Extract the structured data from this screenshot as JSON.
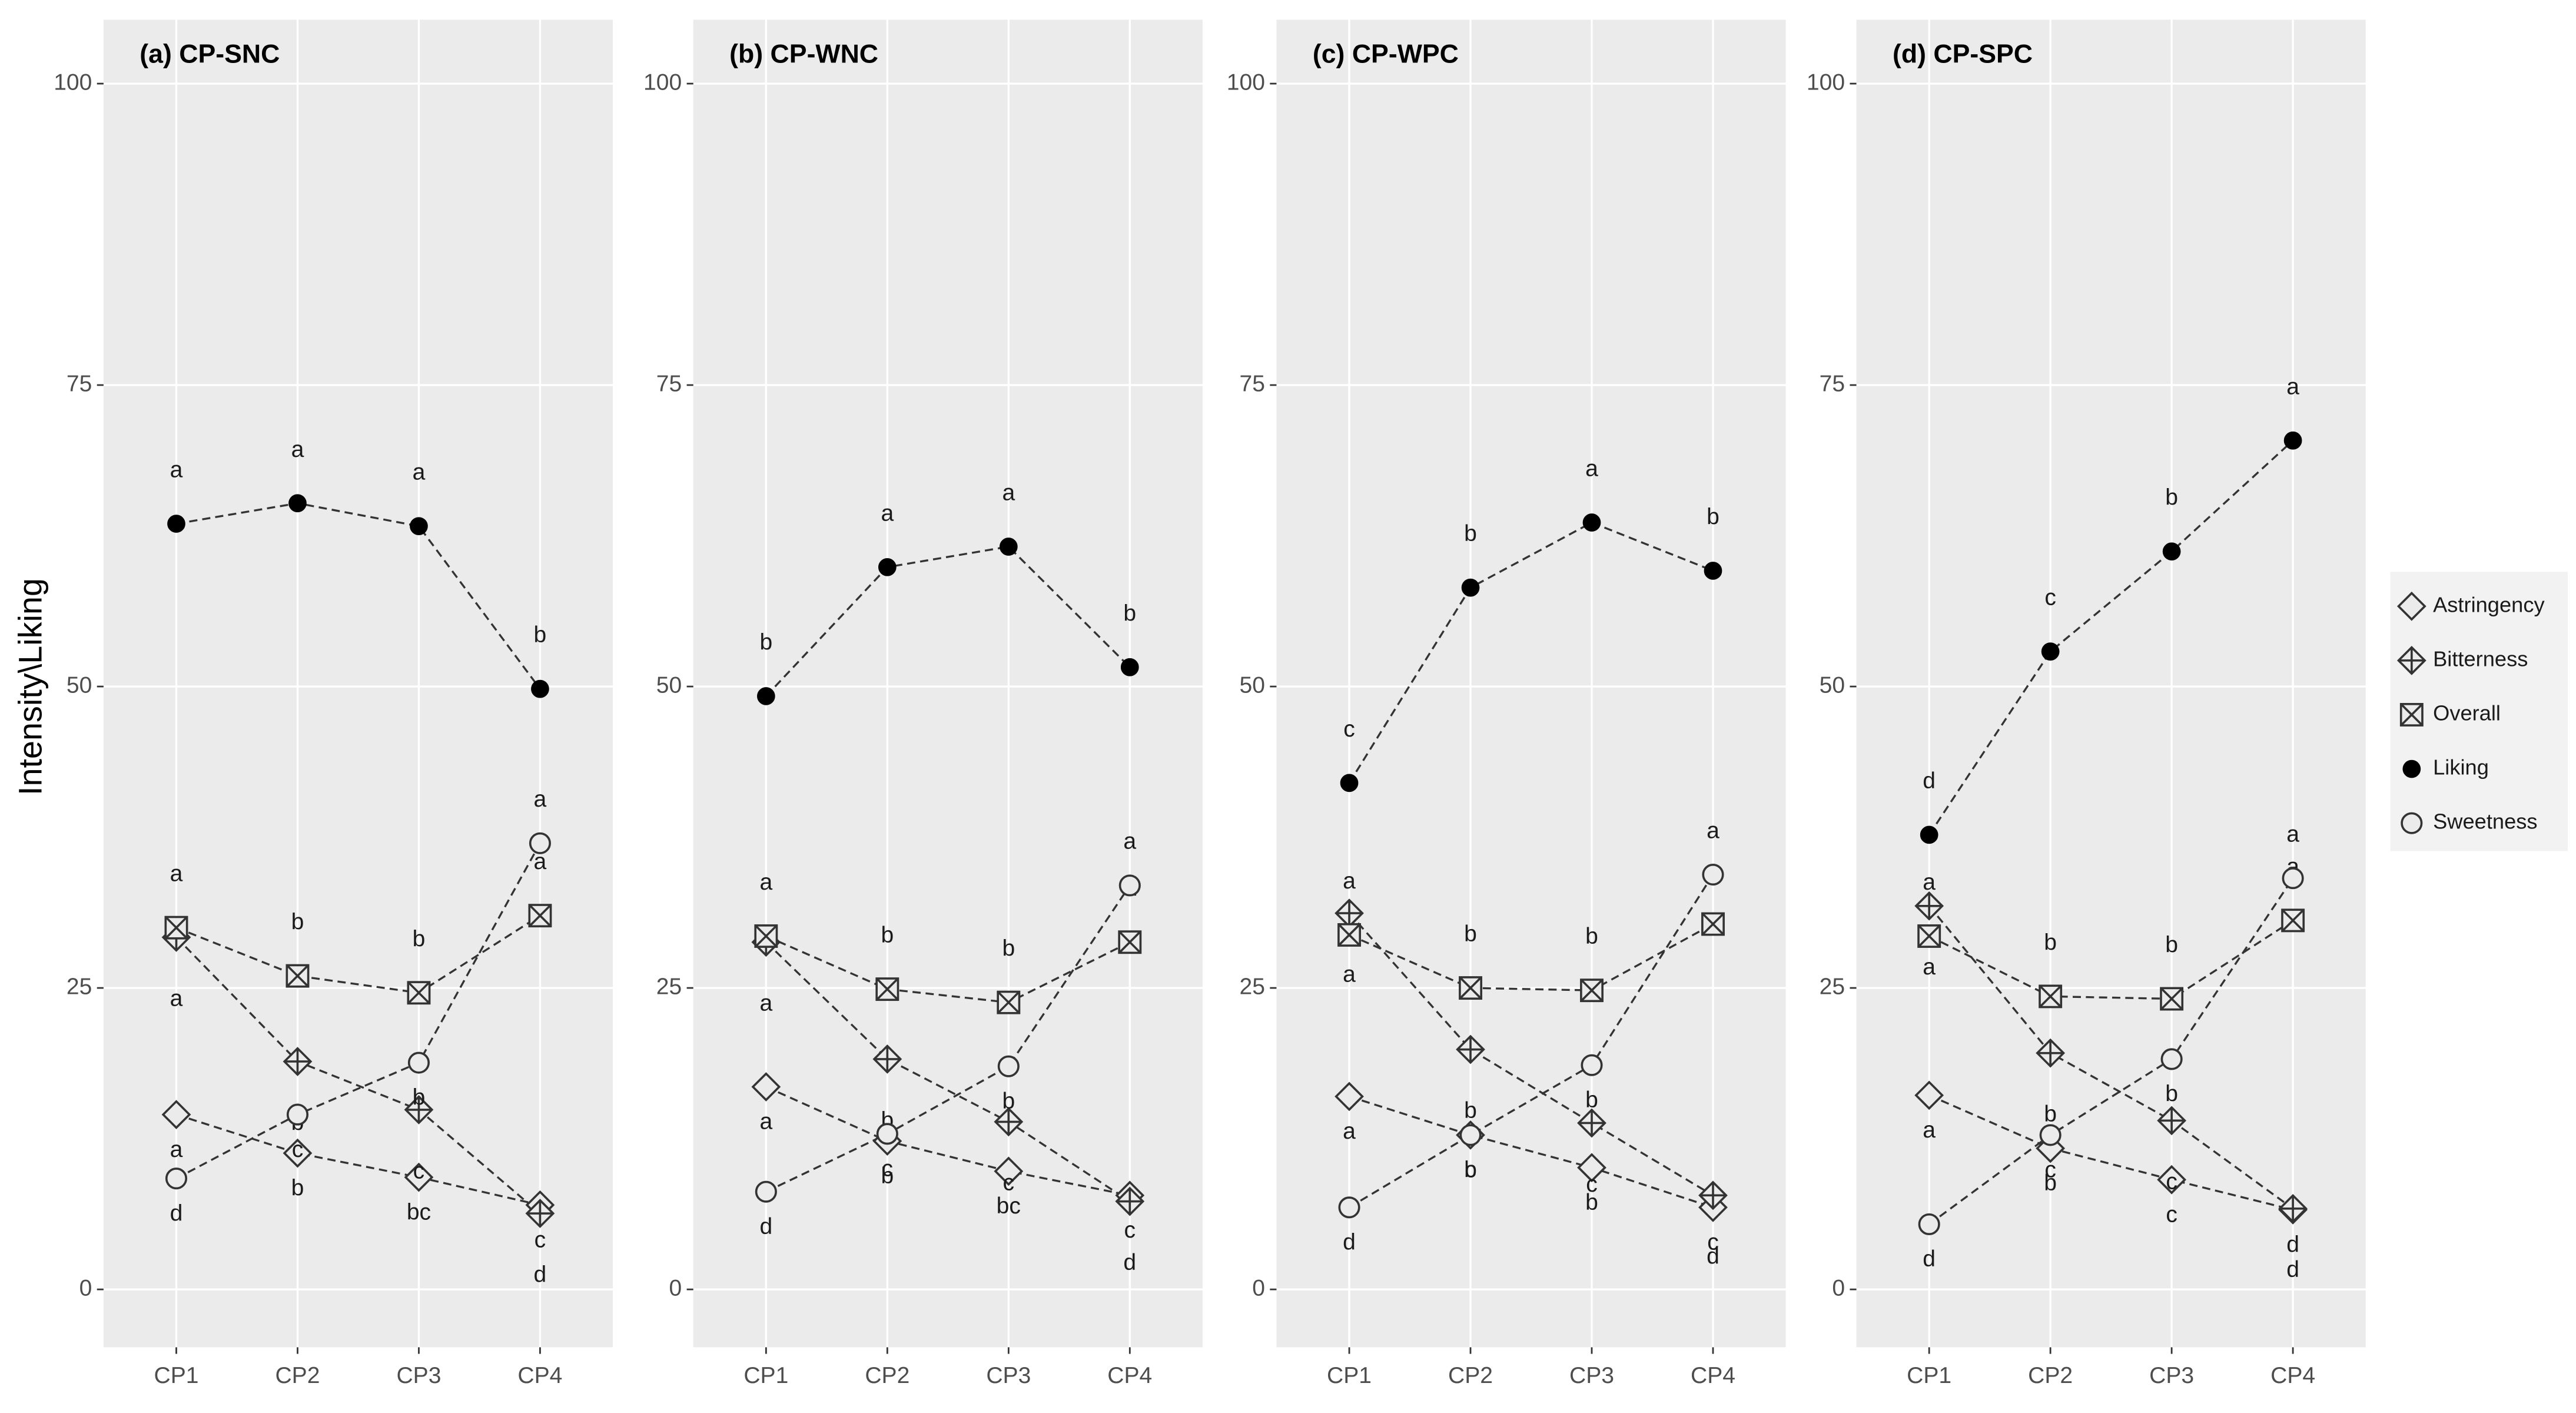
{
  "chart_data": [
    {
      "type": "line",
      "title": "(a) CP-SNC",
      "ylabel": "Intensity\\Liking",
      "categories": [
        "CP1",
        "CP2",
        "CP3",
        "CP4"
      ],
      "ylim": [
        -4.8,
        105.3
      ],
      "yticks": [
        0,
        25,
        50,
        75,
        100
      ],
      "grid": true,
      "legend": "right",
      "series": [
        {
          "name": "Astringency",
          "marker": "diamond",
          "color": "#333333",
          "values": [
            14.5,
            11.3,
            9.3,
            7.0
          ],
          "letters": [
            "a",
            "b",
            "bc",
            "c"
          ]
        },
        {
          "name": "Bitterness",
          "marker": "diamond-plus",
          "color": "#333333",
          "values": [
            29.2,
            18.9,
            14.9,
            6.3
          ],
          "letters": [
            "a",
            "b",
            "c",
            "d"
          ]
        },
        {
          "name": "Overall",
          "marker": "square-x",
          "color": "#333333",
          "values": [
            30.0,
            26.0,
            24.6,
            31.0
          ],
          "letters": [
            "a",
            "b",
            "b",
            "a"
          ]
        },
        {
          "name": "Liking",
          "marker": "circle-filled",
          "color": "#000000",
          "values": [
            63.5,
            65.2,
            63.3,
            49.8
          ],
          "letters": [
            "a",
            "a",
            "a",
            "b"
          ]
        },
        {
          "name": "Sweetness",
          "marker": "circle-open",
          "color": "#333333",
          "values": [
            9.2,
            14.5,
            18.8,
            37.0
          ],
          "letters": [
            "d",
            "c",
            "b",
            "a"
          ]
        }
      ]
    },
    {
      "type": "line",
      "title": "(b) CP-WNC",
      "categories": [
        "CP1",
        "CP2",
        "CP3",
        "CP4"
      ],
      "ylim": [
        -4.8,
        105.3
      ],
      "yticks": [
        0,
        25,
        50,
        75,
        100
      ],
      "grid": true,
      "series": [
        {
          "name": "Astringency",
          "marker": "diamond",
          "color": "#333333",
          "values": [
            16.8,
            12.3,
            9.8,
            7.8
          ],
          "letters": [
            "a",
            "b",
            "bc",
            "c"
          ]
        },
        {
          "name": "Bitterness",
          "marker": "diamond-plus",
          "color": "#333333",
          "values": [
            28.8,
            19.1,
            13.9,
            7.3
          ],
          "letters": [
            "a",
            "b",
            "c",
            "d"
          ]
        },
        {
          "name": "Overall",
          "marker": "square-x",
          "color": "#333333",
          "values": [
            29.3,
            24.9,
            23.8,
            28.8
          ],
          "letters": [
            "a",
            "b",
            "b",
            "a"
          ]
        },
        {
          "name": "Liking",
          "marker": "circle-filled",
          "color": "#000000",
          "values": [
            49.2,
            59.9,
            61.6,
            51.6
          ],
          "letters": [
            "b",
            "a",
            "a",
            "b"
          ]
        },
        {
          "name": "Sweetness",
          "marker": "circle-open",
          "color": "#333333",
          "values": [
            8.1,
            12.9,
            18.5,
            33.5
          ],
          "letters": [
            "d",
            "c",
            "b",
            "a"
          ]
        }
      ]
    },
    {
      "type": "line",
      "title": "(c) CP-WPC",
      "categories": [
        "CP1",
        "CP2",
        "CP3",
        "CP4"
      ],
      "ylim": [
        -4.8,
        105.3
      ],
      "yticks": [
        0,
        25,
        50,
        75,
        100
      ],
      "grid": true,
      "series": [
        {
          "name": "Astringency",
          "marker": "diamond",
          "color": "#333333",
          "values": [
            16.0,
            12.8,
            10.1,
            6.8
          ],
          "letters": [
            "a",
            "b",
            "b",
            "c"
          ]
        },
        {
          "name": "Bitterness",
          "marker": "diamond-plus",
          "color": "#333333",
          "values": [
            31.2,
            19.9,
            13.8,
            7.8
          ],
          "letters": [
            "a",
            "b",
            "c",
            "d"
          ]
        },
        {
          "name": "Overall",
          "marker": "square-x",
          "color": "#333333",
          "values": [
            29.4,
            25.0,
            24.8,
            30.3
          ],
          "letters": [
            "a",
            "b",
            "b",
            "a"
          ]
        },
        {
          "name": "Liking",
          "marker": "circle-filled",
          "color": "#000000",
          "values": [
            42.0,
            58.2,
            63.6,
            59.6
          ],
          "letters": [
            "c",
            "b",
            "a",
            "b"
          ]
        },
        {
          "name": "Sweetness",
          "marker": "circle-open",
          "color": "#333333",
          "values": [
            6.8,
            12.8,
            18.6,
            34.4
          ],
          "letters": [
            "d",
            "c",
            "b",
            "a"
          ]
        }
      ]
    },
    {
      "type": "line",
      "title": "(d) CP-SPC",
      "categories": [
        "CP1",
        "CP2",
        "CP3",
        "CP4"
      ],
      "ylim": [
        -4.8,
        105.3
      ],
      "yticks": [
        0,
        25,
        50,
        75,
        100
      ],
      "grid": true,
      "series": [
        {
          "name": "Astringency",
          "marker": "diamond",
          "color": "#333333",
          "values": [
            16.1,
            11.7,
            9.1,
            6.6
          ],
          "letters": [
            "a",
            "b",
            "c",
            "d"
          ]
        },
        {
          "name": "Bitterness",
          "marker": "diamond-plus",
          "color": "#333333",
          "values": [
            31.8,
            19.6,
            14.0,
            6.7
          ],
          "letters": [
            "a",
            "b",
            "c",
            "d"
          ]
        },
        {
          "name": "Overall",
          "marker": "square-x",
          "color": "#333333",
          "values": [
            29.3,
            24.3,
            24.1,
            30.6
          ],
          "letters": [
            "a",
            "b",
            "b",
            "a"
          ]
        },
        {
          "name": "Liking",
          "marker": "circle-filled",
          "color": "#000000",
          "values": [
            37.7,
            52.9,
            61.2,
            70.4
          ],
          "letters": [
            "d",
            "c",
            "b",
            "a"
          ]
        },
        {
          "name": "Sweetness",
          "marker": "circle-open",
          "color": "#333333",
          "values": [
            5.4,
            12.8,
            19.1,
            34.1
          ],
          "letters": [
            "d",
            "c",
            "b",
            "a"
          ]
        }
      ]
    }
  ]
}
